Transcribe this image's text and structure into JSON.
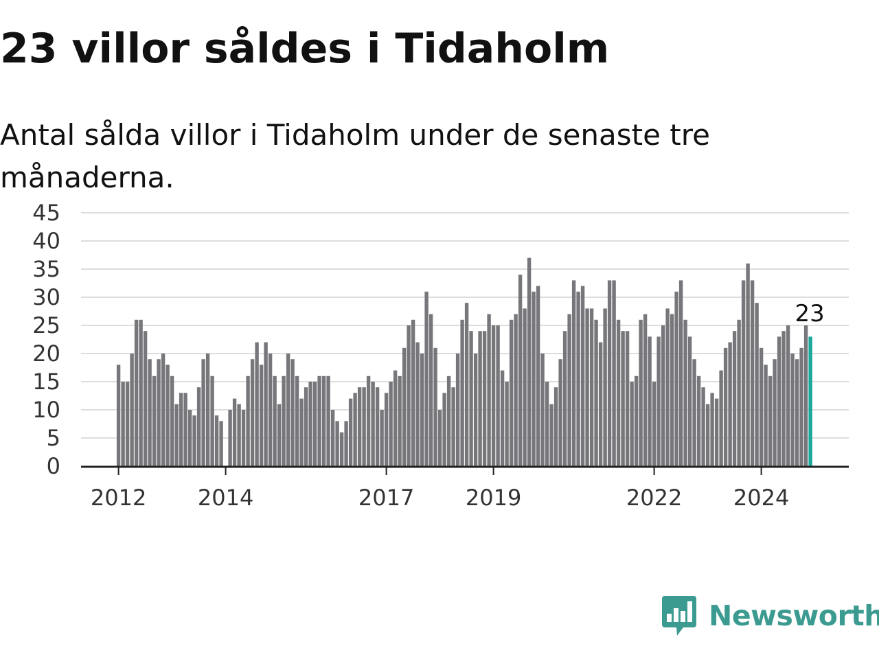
{
  "title": "23 villor såldes i Tidaholm",
  "subtitle": "Antal sålda villor i Tidaholm under de senaste tre månaderna.",
  "brand": {
    "name": "Newsworthy",
    "color": "#3c9b91",
    "icon": "newsworthy-logo-icon"
  },
  "colors": {
    "bar": "#77767b",
    "highlight": "#1aa89a",
    "grid": "#dddddd",
    "axis": "#222222"
  },
  "chart_data": {
    "type": "bar",
    "start": "2012-01",
    "frequency": "monthly",
    "ylim": [
      0,
      45
    ],
    "yticks": [
      "0",
      "5",
      "10",
      "15",
      "20",
      "25",
      "30",
      "35",
      "40",
      "45"
    ],
    "xticks": [
      {
        "label": "2012",
        "month": "2012-01"
      },
      {
        "label": "2014",
        "month": "2014-01"
      },
      {
        "label": "2017",
        "month": "2017-01"
      },
      {
        "label": "2019",
        "month": "2019-01"
      },
      {
        "label": "2022",
        "month": "2022-01"
      },
      {
        "label": "2024",
        "month": "2024-01"
      }
    ],
    "grid": true,
    "values": [
      18,
      15,
      15,
      20,
      26,
      26,
      24,
      19,
      16,
      19,
      20,
      18,
      16,
      11,
      13,
      13,
      10,
      9,
      14,
      19,
      20,
      16,
      9,
      8,
      null,
      10,
      12,
      11,
      10,
      16,
      19,
      22,
      18,
      22,
      20,
      16,
      11,
      16,
      20,
      19,
      16,
      12,
      14,
      15,
      15,
      16,
      16,
      16,
      10,
      8,
      6,
      8,
      12,
      13,
      14,
      14,
      16,
      15,
      14,
      10,
      13,
      15,
      17,
      16,
      21,
      25,
      26,
      22,
      20,
      31,
      27,
      21,
      10,
      13,
      16,
      14,
      20,
      26,
      29,
      24,
      20,
      24,
      24,
      27,
      25,
      25,
      17,
      15,
      26,
      27,
      34,
      28,
      37,
      31,
      32,
      20,
      15,
      11,
      14,
      19,
      24,
      27,
      33,
      31,
      32,
      28,
      28,
      26,
      22,
      28,
      33,
      33,
      26,
      24,
      24,
      15,
      16,
      26,
      27,
      23,
      15,
      23,
      25,
      28,
      27,
      31,
      33,
      26,
      23,
      19,
      16,
      14,
      11,
      13,
      12,
      17,
      21,
      22,
      24,
      26,
      33,
      36,
      33,
      29,
      21,
      18,
      16,
      19,
      23,
      24,
      25,
      20,
      19,
      21,
      25,
      23
    ],
    "highlight_last": true,
    "annotation": "23"
  }
}
